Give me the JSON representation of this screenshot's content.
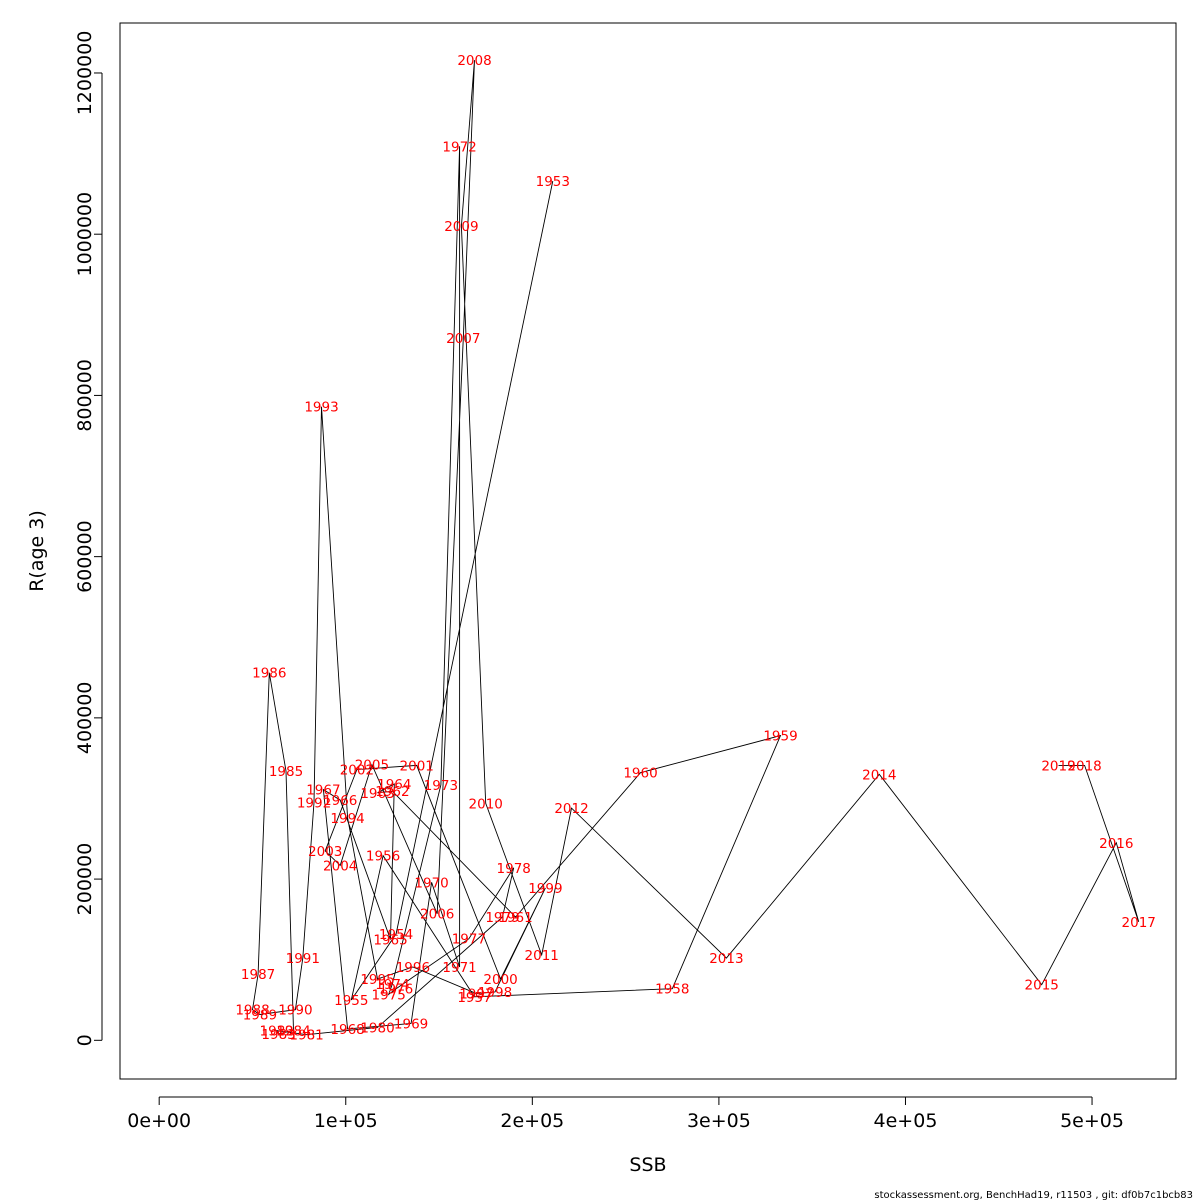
{
  "chart_data": {
    "type": "line",
    "xlabel": "SSB",
    "ylabel": "R(age 3)",
    "xlim": [
      -21000,
      545000
    ],
    "ylim": [
      -48000,
      1262000
    ],
    "x_ticks": [
      0,
      100000,
      200000,
      300000,
      400000,
      500000
    ],
    "x_tick_labels": [
      "0e+00",
      "1e+05",
      "2e+05",
      "3e+05",
      "4e+05",
      "5e+05"
    ],
    "y_ticks": [
      0,
      200000,
      400000,
      600000,
      800000,
      1000000,
      1200000
    ],
    "y_tick_labels": [
      "0",
      "200000",
      "400000",
      "600000",
      "800000",
      "1000000",
      "1200000"
    ],
    "grid": false,
    "line_color": "#000000",
    "label_color": "#ff0000",
    "points": [
      {
        "year": "1953",
        "ssb": 211000,
        "r": 1066000
      },
      {
        "year": "1954",
        "ssb": 127000,
        "r": 132000
      },
      {
        "year": "1955",
        "ssb": 103000,
        "r": 50000
      },
      {
        "year": "1956",
        "ssb": 120000,
        "r": 229000
      },
      {
        "year": "1957",
        "ssb": 169000,
        "r": 54000
      },
      {
        "year": "1958",
        "ssb": 275000,
        "r": 64000
      },
      {
        "year": "1959",
        "ssb": 333000,
        "r": 378000
      },
      {
        "year": "1960",
        "ssb": 258000,
        "r": 332000
      },
      {
        "year": "1961",
        "ssb": 191000,
        "r": 153000
      },
      {
        "year": "1962",
        "ssb": 125000,
        "r": 309000
      },
      {
        "year": "1963",
        "ssb": 117000,
        "r": 307000
      },
      {
        "year": "1964",
        "ssb": 126000,
        "r": 318000
      },
      {
        "year": "1965",
        "ssb": 124000,
        "r": 125000
      },
      {
        "year": "1966",
        "ssb": 97000,
        "r": 298000
      },
      {
        "year": "1967",
        "ssb": 88000,
        "r": 311000
      },
      {
        "year": "1968",
        "ssb": 101000,
        "r": 14000
      },
      {
        "year": "1969",
        "ssb": 135000,
        "r": 21000
      },
      {
        "year": "1970",
        "ssb": 146000,
        "r": 196000
      },
      {
        "year": "1971",
        "ssb": 161000,
        "r": 91000
      },
      {
        "year": "1972",
        "ssb": 161000,
        "r": 1109000
      },
      {
        "year": "1973",
        "ssb": 151000,
        "r": 317000
      },
      {
        "year": "1974",
        "ssb": 125000,
        "r": 70000
      },
      {
        "year": "1975",
        "ssb": 123000,
        "r": 57000
      },
      {
        "year": "1976",
        "ssb": 127000,
        "r": 64000
      },
      {
        "year": "1977",
        "ssb": 166000,
        "r": 126000
      },
      {
        "year": "1978",
        "ssb": 190000,
        "r": 214000
      },
      {
        "year": "1979",
        "ssb": 184000,
        "r": 153000
      },
      {
        "year": "1980",
        "ssb": 117000,
        "r": 16000
      },
      {
        "year": "1981",
        "ssb": 79000,
        "r": 7000
      },
      {
        "year": "1982",
        "ssb": 63000,
        "r": 12000
      },
      {
        "year": "1983",
        "ssb": 64000,
        "r": 8000
      },
      {
        "year": "1984",
        "ssb": 72000,
        "r": 12000
      },
      {
        "year": "1985",
        "ssb": 68000,
        "r": 334000
      },
      {
        "year": "1986",
        "ssb": 59000,
        "r": 456000
      },
      {
        "year": "1987",
        "ssb": 53000,
        "r": 82000
      },
      {
        "year": "1988",
        "ssb": 50000,
        "r": 38000
      },
      {
        "year": "1989",
        "ssb": 54000,
        "r": 32000
      },
      {
        "year": "1990",
        "ssb": 73000,
        "r": 38000
      },
      {
        "year": "1991",
        "ssb": 77000,
        "r": 102000
      },
      {
        "year": "1992",
        "ssb": 83000,
        "r": 295000
      },
      {
        "year": "1993",
        "ssb": 87000,
        "r": 786000
      },
      {
        "year": "1994",
        "ssb": 101000,
        "r": 276000
      },
      {
        "year": "1995",
        "ssb": 117000,
        "r": 76000
      },
      {
        "year": "1996",
        "ssb": 136000,
        "r": 91000
      },
      {
        "year": "1997",
        "ssb": 170000,
        "r": 58000
      },
      {
        "year": "1998",
        "ssb": 180000,
        "r": 60000
      },
      {
        "year": "1999",
        "ssb": 207000,
        "r": 189000
      },
      {
        "year": "2000",
        "ssb": 183000,
        "r": 76000
      },
      {
        "year": "2001",
        "ssb": 138000,
        "r": 341000
      },
      {
        "year": "2002",
        "ssb": 106000,
        "r": 336000
      },
      {
        "year": "2003",
        "ssb": 89000,
        "r": 235000
      },
      {
        "year": "2004",
        "ssb": 97000,
        "r": 217000
      },
      {
        "year": "2005",
        "ssb": 114000,
        "r": 342000
      },
      {
        "year": "2006",
        "ssb": 149000,
        "r": 157000
      },
      {
        "year": "2007",
        "ssb": 163000,
        "r": 871000
      },
      {
        "year": "2008",
        "ssb": 169000,
        "r": 1216000
      },
      {
        "year": "2009",
        "ssb": 162000,
        "r": 1010000
      },
      {
        "year": "2010",
        "ssb": 175000,
        "r": 294000
      },
      {
        "year": "2011",
        "ssb": 205000,
        "r": 106000
      },
      {
        "year": "2012",
        "ssb": 221000,
        "r": 288000
      },
      {
        "year": "2013",
        "ssb": 304000,
        "r": 102000
      },
      {
        "year": "2014",
        "ssb": 386000,
        "r": 330000
      },
      {
        "year": "2015",
        "ssb": 473000,
        "r": 69000
      },
      {
        "year": "2016",
        "ssb": 513000,
        "r": 245000
      },
      {
        "year": "2017",
        "ssb": 525000,
        "r": 147000
      },
      {
        "year": "2018",
        "ssb": 496000,
        "r": 341000
      },
      {
        "year": "2019",
        "ssb": 482000,
        "r": 341000
      }
    ]
  },
  "footer_text": "stockassessment.org, BenchHad19, r11503 , git: df0b7c1bcb83"
}
